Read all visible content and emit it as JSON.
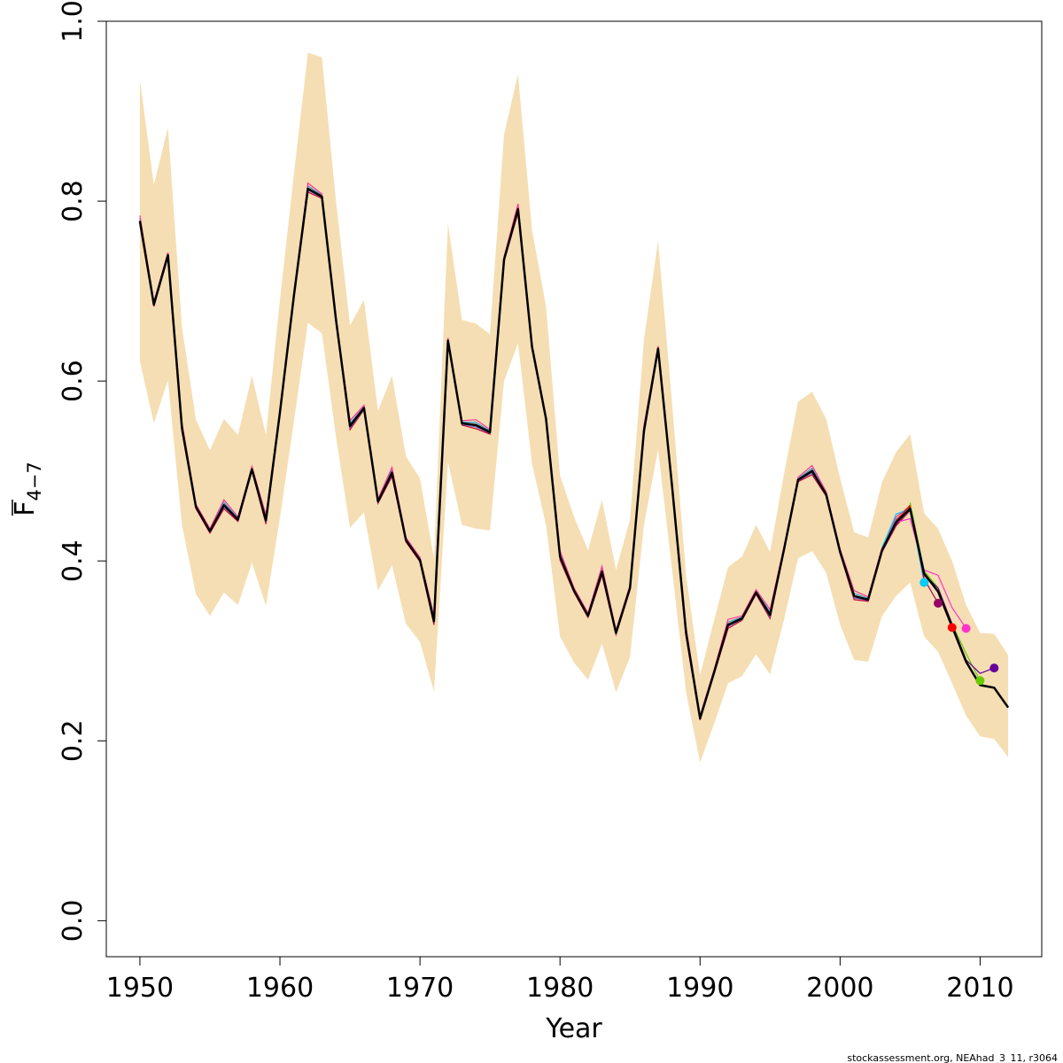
{
  "chart_data": {
    "type": "line",
    "xlabel": "Year",
    "ylabel_main": "F",
    "ylabel_sub": "4−7",
    "xlim": [
      1947.6,
      2014.4
    ],
    "ylim": [
      -0.04,
      1.0
    ],
    "x_ticks": [
      1950,
      1960,
      1970,
      1980,
      1990,
      2000,
      2010
    ],
    "y_ticks": [
      0.0,
      0.2,
      0.4,
      0.6,
      0.8,
      1.0
    ],
    "y_tick_labels": [
      "0.0",
      "0.2",
      "0.4",
      "0.6",
      "0.8",
      "1.0"
    ],
    "grid": false,
    "band_color": "#f5deb3",
    "main_color": "#000000",
    "confidence_band": {
      "years": [
        1950,
        1951,
        1952,
        1953,
        1954,
        1955,
        1956,
        1957,
        1958,
        1959,
        1960,
        1961,
        1962,
        1963,
        1964,
        1965,
        1966,
        1967,
        1968,
        1969,
        1970,
        1971,
        1972,
        1973,
        1974,
        1975,
        1976,
        1977,
        1978,
        1979,
        1980,
        1981,
        1982,
        1983,
        1984,
        1985,
        1986,
        1987,
        1988,
        1989,
        1990,
        1991,
        1992,
        1993,
        1994,
        1995,
        1996,
        1997,
        1998,
        1999,
        2000,
        2001,
        2002,
        2003,
        2004,
        2005,
        2006,
        2007,
        2008,
        2009,
        2010,
        2011,
        2012
      ],
      "upper": [
        0.935,
        0.818,
        0.882,
        0.66,
        0.557,
        0.523,
        0.558,
        0.54,
        0.606,
        0.54,
        0.69,
        0.83,
        0.965,
        0.96,
        0.8,
        0.662,
        0.69,
        0.567,
        0.606,
        0.516,
        0.492,
        0.403,
        0.775,
        0.668,
        0.664,
        0.652,
        0.874,
        0.941,
        0.768,
        0.683,
        0.495,
        0.449,
        0.412,
        0.468,
        0.39,
        0.446,
        0.646,
        0.756,
        0.575,
        0.384,
        0.273,
        0.334,
        0.393,
        0.405,
        0.44,
        0.41,
        0.497,
        0.577,
        0.588,
        0.558,
        0.492,
        0.432,
        0.426,
        0.488,
        0.521,
        0.541,
        0.453,
        0.436,
        0.4,
        0.351,
        0.32,
        0.319,
        0.295
      ],
      "lower": [
        0.622,
        0.553,
        0.601,
        0.44,
        0.363,
        0.339,
        0.365,
        0.351,
        0.398,
        0.35,
        0.448,
        0.555,
        0.665,
        0.653,
        0.538,
        0.437,
        0.454,
        0.367,
        0.395,
        0.33,
        0.31,
        0.255,
        0.51,
        0.44,
        0.436,
        0.434,
        0.6,
        0.642,
        0.508,
        0.44,
        0.316,
        0.287,
        0.268,
        0.308,
        0.254,
        0.293,
        0.44,
        0.524,
        0.39,
        0.254,
        0.176,
        0.219,
        0.264,
        0.272,
        0.296,
        0.274,
        0.335,
        0.403,
        0.411,
        0.387,
        0.329,
        0.29,
        0.288,
        0.339,
        0.361,
        0.376,
        0.316,
        0.299,
        0.264,
        0.228,
        0.205,
        0.202,
        0.182
      ]
    },
    "main_series": {
      "name": "",
      "years": [
        1950,
        1951,
        1952,
        1953,
        1954,
        1955,
        1956,
        1957,
        1958,
        1959,
        1960,
        1961,
        1962,
        1963,
        1964,
        1965,
        1966,
        1967,
        1968,
        1969,
        1970,
        1971,
        1972,
        1973,
        1974,
        1975,
        1976,
        1977,
        1978,
        1979,
        1980,
        1981,
        1982,
        1983,
        1984,
        1985,
        1986,
        1987,
        1988,
        1989,
        1990,
        1991,
        1992,
        1993,
        1994,
        1995,
        1996,
        1997,
        1998,
        1999,
        2000,
        2001,
        2002,
        2003,
        2004,
        2005,
        2006,
        2007,
        2008,
        2009,
        2010,
        2011,
        2012
      ],
      "values": [
        0.778,
        0.685,
        0.74,
        0.548,
        0.46,
        0.433,
        0.462,
        0.446,
        0.502,
        0.445,
        0.565,
        0.695,
        0.814,
        0.805,
        0.668,
        0.55,
        0.57,
        0.466,
        0.498,
        0.423,
        0.401,
        0.333,
        0.645,
        0.553,
        0.551,
        0.543,
        0.735,
        0.791,
        0.638,
        0.558,
        0.405,
        0.367,
        0.339,
        0.388,
        0.32,
        0.37,
        0.545,
        0.636,
        0.483,
        0.32,
        0.225,
        0.276,
        0.329,
        0.336,
        0.365,
        0.34,
        0.413,
        0.49,
        0.5,
        0.474,
        0.41,
        0.361,
        0.357,
        0.412,
        0.443,
        0.458,
        0.386,
        0.366,
        0.327,
        0.288,
        0.262,
        0.259,
        0.237
      ]
    },
    "retro_series": [
      {
        "color": "#00ccff",
        "end_year": 2006,
        "years": [
          2003,
          2004,
          2005,
          2006
        ],
        "values": [
          0.415,
          0.452,
          0.458,
          0.376
        ]
      },
      {
        "color": "#990066",
        "end_year": 2007,
        "years": [
          2004,
          2005,
          2006,
          2007
        ],
        "values": [
          0.44,
          0.46,
          0.38,
          0.353
        ]
      },
      {
        "color": "#ff0000",
        "end_year": 2008,
        "years": [
          2004,
          2005,
          2006,
          2007,
          2008
        ],
        "values": [
          0.445,
          0.462,
          0.384,
          0.367,
          0.326
        ]
      },
      {
        "color": "#ff33cc",
        "end_year": 2009,
        "years": [
          2004,
          2005,
          2006,
          2007,
          2008,
          2009
        ],
        "values": [
          0.443,
          0.447,
          0.39,
          0.384,
          0.348,
          0.325
        ]
      },
      {
        "color": "#66cc00",
        "end_year": 2010,
        "years": [
          2005,
          2006,
          2007,
          2008,
          2009,
          2010
        ],
        "values": [
          0.465,
          0.389,
          0.37,
          0.33,
          0.297,
          0.267
        ]
      },
      {
        "color": "#660099",
        "end_year": 2011,
        "years": [
          2006,
          2007,
          2008,
          2009,
          2010,
          2011
        ],
        "values": [
          0.385,
          0.37,
          0.33,
          0.29,
          0.275,
          0.281
        ]
      }
    ],
    "full_retro_colors": [
      "#3399cc",
      "#cc0033",
      "#ff3399",
      "#6666cc"
    ],
    "full_retro_offsets": [
      0.003,
      -0.004,
      0.006,
      -0.002
    ]
  },
  "footer_text": "stockassessment.org, NEAhad_3_11, r3064"
}
